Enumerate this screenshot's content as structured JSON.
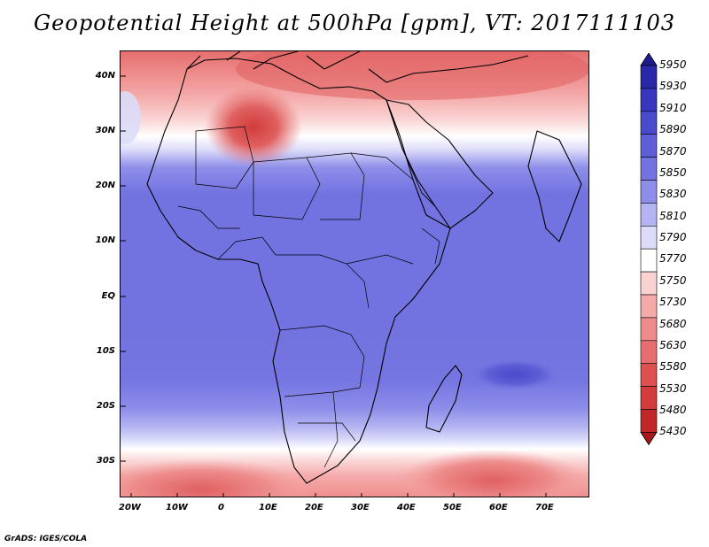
{
  "title": "Geopotential Height at 500hPa [gpm], VT: 2017111103",
  "footer": "GrADS: IGES/COLA",
  "map": {
    "lat_labels": [
      "40N",
      "30N",
      "20N",
      "10N",
      "EQ",
      "10S",
      "20S",
      "30S"
    ],
    "lon_labels": [
      "20W",
      "10W",
      "0",
      "10E",
      "20E",
      "30E",
      "40E",
      "50E",
      "60E",
      "70E"
    ]
  },
  "colorbar": {
    "levels": [
      "5950",
      "5930",
      "5910",
      "5890",
      "5870",
      "5850",
      "5830",
      "5810",
      "5790",
      "5770",
      "5750",
      "5730",
      "5680",
      "5630",
      "5580",
      "5530",
      "5480",
      "5430"
    ],
    "colors": [
      "#1c1c8c",
      "#2828a8",
      "#3636be",
      "#4a4acc",
      "#5e5ed6",
      "#7272e0",
      "#8e8eea",
      "#b4b4f2",
      "#dcdcfa",
      "#ffffff",
      "#fad2d2",
      "#f5aaaa",
      "#ee8c8c",
      "#e66e6e",
      "#dc5050",
      "#d23c3c",
      "#c02828",
      "#a81818"
    ]
  }
}
